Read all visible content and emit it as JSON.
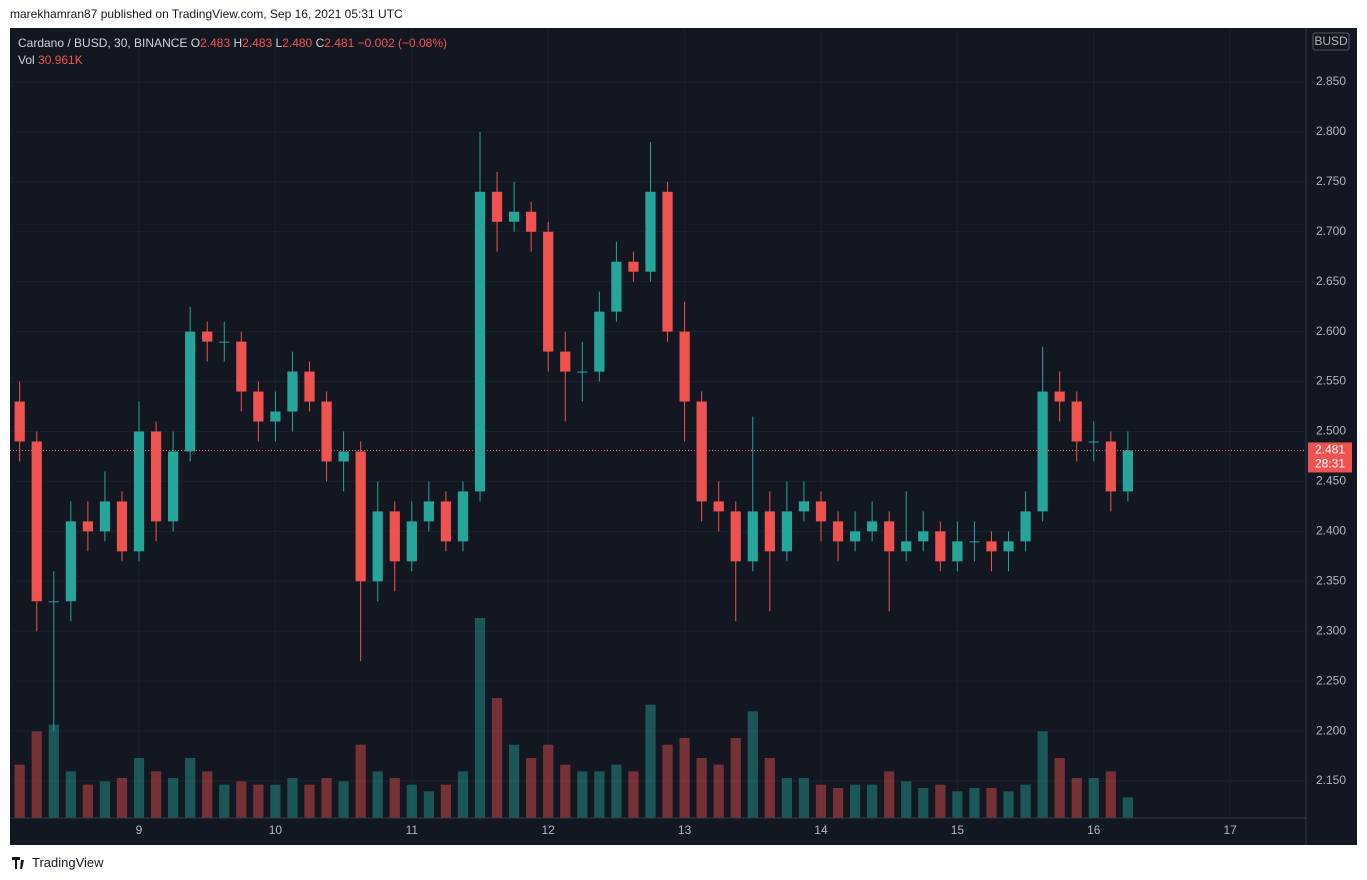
{
  "header": {
    "publisher": "marekhamran87 published on TradingView.com, Sep 16, 2021 05:31 UTC"
  },
  "footer": {
    "brand": "TradingView"
  },
  "chart_data": {
    "type": "candlestick",
    "symbol": "Cardano / BUSD, 30, BINANCE",
    "ohlc_legend": [
      {
        "name": "O",
        "value": 2.483
      },
      {
        "name": "H",
        "value": 2.483
      },
      {
        "name": "L",
        "value": 2.48,
        "label": "2.480"
      },
      {
        "name": "C",
        "value": 2.481
      }
    ],
    "change": "−0.002 (−0.08%)",
    "volume_legend": {
      "name": "Vol",
      "label": "30.961K"
    },
    "currency": "BUSD",
    "last_price": 2.481,
    "countdown": "28:31",
    "up_color": "#26a69a",
    "down_color": "#ef5350",
    "x": [
      8.125,
      8.25,
      8.375,
      8.5,
      8.625,
      8.75,
      8.875,
      9,
      9.125,
      9.25,
      9.375,
      9.5,
      9.625,
      9.75,
      9.875,
      10,
      10.125,
      10.25,
      10.375,
      10.5,
      10.625,
      10.75,
      10.875,
      11,
      11.125,
      11.25,
      11.375,
      11.5,
      11.625,
      11.75,
      11.875,
      12,
      12.125,
      12.25,
      12.375,
      12.5,
      12.625,
      12.75,
      12.875,
      13,
      13.125,
      13.25,
      13.375,
      13.5,
      13.625,
      13.75,
      13.875,
      14,
      14.125,
      14.25,
      14.375,
      14.5,
      14.625,
      14.75,
      14.875,
      15,
      15.125,
      15.25,
      15.375,
      15.5,
      15.625,
      15.75,
      15.875,
      16,
      16.125,
      16.25
    ],
    "open": [
      2.53,
      2.49,
      2.33,
      2.33,
      2.41,
      2.4,
      2.43,
      2.38,
      2.5,
      2.41,
      2.48,
      2.6,
      2.59,
      2.59,
      2.54,
      2.51,
      2.52,
      2.56,
      2.53,
      2.47,
      2.48,
      2.35,
      2.42,
      2.37,
      2.41,
      2.43,
      2.39,
      2.44,
      2.74,
      2.71,
      2.72,
      2.7,
      2.58,
      2.56,
      2.56,
      2.62,
      2.67,
      2.66,
      2.74,
      2.6,
      2.53,
      2.43,
      2.42,
      2.37,
      2.42,
      2.38,
      2.42,
      2.43,
      2.41,
      2.39,
      2.4,
      2.41,
      2.38,
      2.39,
      2.4,
      2.37,
      2.39,
      2.39,
      2.38,
      2.39,
      2.42,
      2.54,
      2.53,
      2.49,
      2.49,
      2.44
    ],
    "high": [
      2.55,
      2.5,
      2.36,
      2.43,
      2.43,
      2.46,
      2.44,
      2.53,
      2.51,
      2.5,
      2.625,
      2.61,
      2.61,
      2.6,
      2.55,
      2.54,
      2.58,
      2.57,
      2.54,
      2.5,
      2.49,
      2.45,
      2.43,
      2.43,
      2.45,
      2.44,
      2.45,
      2.8,
      2.76,
      2.75,
      2.73,
      2.71,
      2.6,
      2.59,
      2.64,
      2.69,
      2.68,
      2.79,
      2.75,
      2.63,
      2.54,
      2.45,
      2.43,
      2.515,
      2.44,
      2.45,
      2.45,
      2.44,
      2.42,
      2.42,
      2.43,
      2.42,
      2.44,
      2.42,
      2.41,
      2.41,
      2.41,
      2.4,
      2.4,
      2.44,
      2.585,
      2.56,
      2.54,
      2.51,
      2.5,
      2.5
    ],
    "low": [
      2.47,
      2.3,
      2.2,
      2.31,
      2.38,
      2.39,
      2.37,
      2.37,
      2.39,
      2.4,
      2.47,
      2.57,
      2.57,
      2.52,
      2.49,
      2.49,
      2.5,
      2.52,
      2.45,
      2.44,
      2.27,
      2.33,
      2.34,
      2.36,
      2.4,
      2.38,
      2.38,
      2.43,
      2.68,
      2.7,
      2.68,
      2.56,
      2.51,
      2.53,
      2.55,
      2.61,
      2.65,
      2.65,
      2.59,
      2.49,
      2.41,
      2.4,
      2.31,
      2.36,
      2.32,
      2.37,
      2.41,
      2.39,
      2.37,
      2.38,
      2.39,
      2.32,
      2.37,
      2.38,
      2.36,
      2.36,
      2.37,
      2.36,
      2.36,
      2.38,
      2.41,
      2.51,
      2.47,
      2.47,
      2.42,
      2.43
    ],
    "close": [
      2.49,
      2.33,
      2.33,
      2.41,
      2.4,
      2.43,
      2.38,
      2.5,
      2.41,
      2.48,
      2.6,
      2.59,
      2.59,
      2.54,
      2.51,
      2.52,
      2.56,
      2.53,
      2.47,
      2.48,
      2.35,
      2.42,
      2.37,
      2.41,
      2.43,
      2.39,
      2.44,
      2.74,
      2.71,
      2.72,
      2.7,
      2.58,
      2.56,
      2.56,
      2.62,
      2.67,
      2.66,
      2.74,
      2.6,
      2.53,
      2.43,
      2.42,
      2.37,
      2.42,
      2.38,
      2.42,
      2.43,
      2.41,
      2.39,
      2.4,
      2.41,
      2.38,
      2.39,
      2.4,
      2.37,
      2.39,
      2.39,
      2.38,
      2.39,
      2.42,
      2.54,
      2.53,
      2.49,
      2.49,
      2.44,
      2.481
    ],
    "volume": [
      80,
      130,
      140,
      70,
      50,
      55,
      60,
      90,
      70,
      60,
      90,
      70,
      50,
      55,
      50,
      50,
      60,
      50,
      60,
      55,
      110,
      70,
      60,
      50,
      40,
      50,
      70,
      300,
      180,
      110,
      90,
      110,
      80,
      70,
      70,
      80,
      70,
      170,
      110,
      120,
      90,
      80,
      120,
      160,
      90,
      60,
      60,
      50,
      45,
      50,
      50,
      70,
      55,
      45,
      50,
      40,
      45,
      45,
      40,
      50,
      130,
      90,
      60,
      60,
      70,
      30.961
    ],
    "xlim": [
      8.054,
      17.556
    ],
    "xticks": [
      9,
      10,
      11,
      12,
      13,
      14,
      15,
      16,
      17
    ],
    "ylim": [
      2.113,
      2.904
    ],
    "yticks": [
      {
        "value": 2.15,
        "label": "2.150"
      },
      {
        "value": 2.2,
        "label": "2.200"
      },
      {
        "value": 2.25,
        "label": "2.250"
      },
      {
        "value": 2.3,
        "label": "2.300"
      },
      {
        "value": 2.35,
        "label": "2.350"
      },
      {
        "value": 2.4,
        "label": "2.400"
      },
      {
        "value": 2.45,
        "label": "2.450"
      },
      {
        "value": 2.5,
        "label": "2.500"
      },
      {
        "value": 2.55,
        "label": "2.550"
      },
      {
        "value": 2.6,
        "label": "2.600"
      },
      {
        "value": 2.65,
        "label": "2.650"
      },
      {
        "value": 2.7,
        "label": "2.700"
      },
      {
        "value": 2.75,
        "label": "2.750"
      },
      {
        "value": 2.8,
        "label": "2.800"
      },
      {
        "value": 2.85,
        "label": "2.850"
      }
    ],
    "grid": true
  }
}
